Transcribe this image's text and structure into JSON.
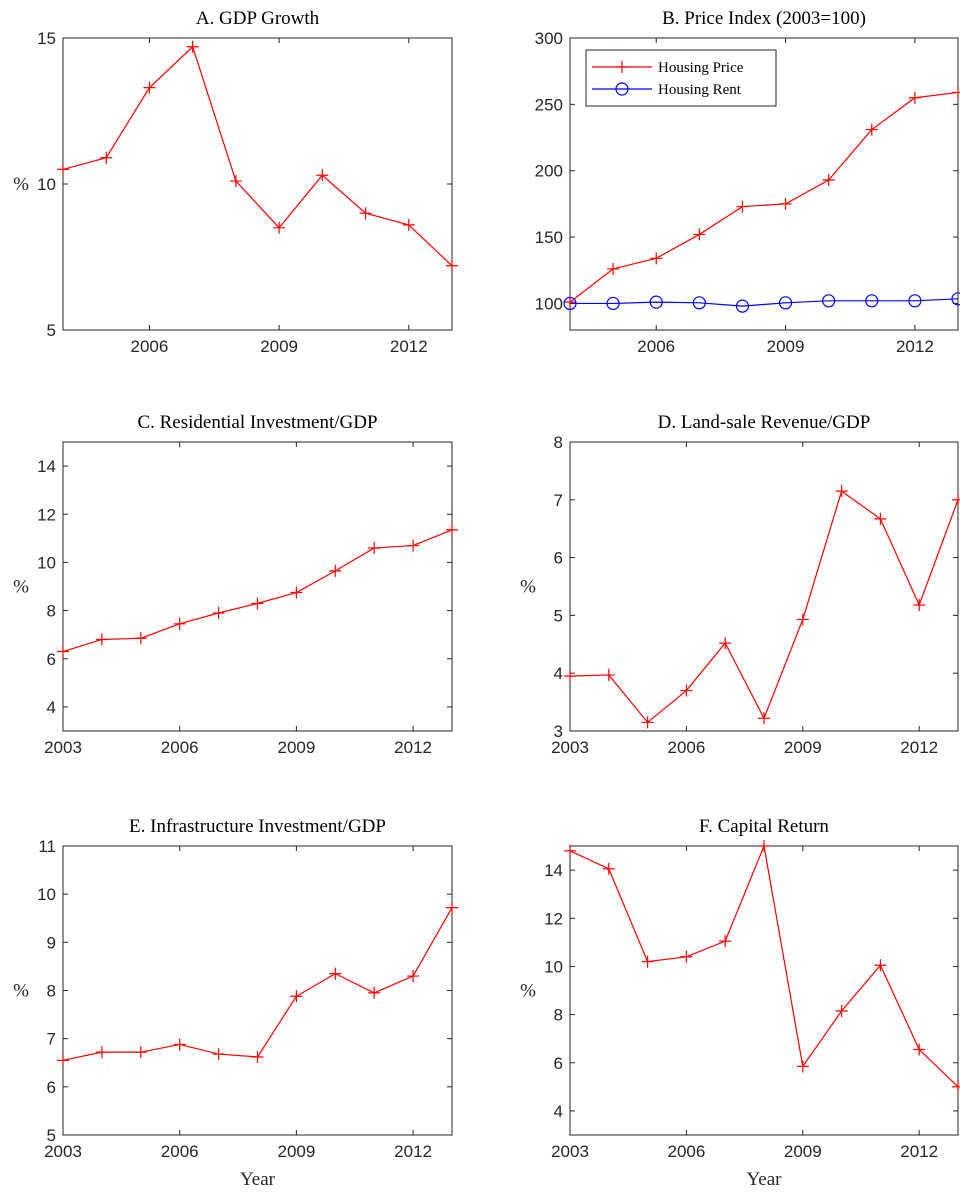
{
  "chart_data": [
    {
      "type": "line",
      "title": "A. GDP Growth",
      "ylabel": "%",
      "x": [
        2004,
        2005,
        2006,
        2007,
        2008,
        2009,
        2010,
        2011,
        2012,
        2013
      ],
      "series": [
        {
          "color": "#ff0000",
          "marker": "plus",
          "values": [
            10.5,
            10.9,
            13.3,
            14.7,
            10.1,
            8.5,
            10.3,
            9.0,
            8.6,
            7.2
          ]
        }
      ],
      "xlim": [
        2004,
        2013
      ],
      "xticks": [
        2006,
        2009,
        2012
      ],
      "ylim": [
        5,
        15
      ],
      "yticks": [
        5,
        10,
        15
      ]
    },
    {
      "type": "line",
      "title": "B. Price Index (2003=100)",
      "x": [
        2004,
        2005,
        2006,
        2007,
        2008,
        2009,
        2010,
        2011,
        2012,
        2013
      ],
      "series": [
        {
          "name": "Housing Price",
          "color": "#ff0000",
          "marker": "plus",
          "values": [
            101,
            126,
            134,
            152,
            173,
            175,
            193,
            231,
            255,
            259
          ]
        },
        {
          "name": "Housing Rent",
          "color": "#0000ff",
          "marker": "circle",
          "values": [
            100,
            100,
            101,
            100.5,
            98,
            100.5,
            102,
            102,
            102,
            103.5
          ]
        }
      ],
      "legend": "upper left",
      "xlim": [
        2004,
        2013
      ],
      "xticks": [
        2006,
        2009,
        2012
      ],
      "ylim": [
        80,
        300
      ],
      "yticks": [
        100,
        150,
        200,
        250,
        300
      ]
    },
    {
      "type": "line",
      "title": "C. Residential Investment/GDP",
      "ylabel": "%",
      "x": [
        2003,
        2004,
        2005,
        2006,
        2007,
        2008,
        2009,
        2010,
        2011,
        2012,
        2013
      ],
      "series": [
        {
          "color": "#ff0000",
          "marker": "plus",
          "values": [
            6.3,
            6.8,
            6.85,
            7.45,
            7.9,
            8.3,
            8.75,
            9.65,
            10.6,
            10.7,
            11.35
          ]
        }
      ],
      "xlim": [
        2003,
        2013
      ],
      "xticks": [
        2003,
        2006,
        2009,
        2012
      ],
      "ylim": [
        3,
        15
      ],
      "yticks": [
        4,
        6,
        8,
        10,
        12,
        14
      ]
    },
    {
      "type": "line",
      "title": "D. Land-sale Revenue/GDP",
      "ylabel": "%",
      "x": [
        2003,
        2004,
        2005,
        2006,
        2007,
        2008,
        2009,
        2010,
        2011,
        2012,
        2013
      ],
      "series": [
        {
          "color": "#ff0000",
          "marker": "plus",
          "values": [
            3.95,
            3.97,
            3.15,
            3.7,
            4.52,
            3.22,
            4.93,
            7.15,
            6.67,
            5.18,
            7.0
          ]
        }
      ],
      "xlim": [
        2003,
        2013
      ],
      "xticks": [
        2003,
        2006,
        2009,
        2012
      ],
      "ylim": [
        3,
        8
      ],
      "yticks": [
        3,
        4,
        5,
        6,
        7,
        8
      ]
    },
    {
      "type": "line",
      "title": "E. Infrastructure Investment/GDP",
      "ylabel": "%",
      "xlabel": "Year",
      "x": [
        2003,
        2004,
        2005,
        2006,
        2007,
        2008,
        2009,
        2010,
        2011,
        2012,
        2013
      ],
      "series": [
        {
          "color": "#ff0000",
          "marker": "plus",
          "values": [
            6.55,
            6.72,
            6.72,
            6.88,
            6.68,
            6.62,
            7.88,
            8.35,
            7.95,
            8.3,
            9.72
          ]
        }
      ],
      "xlim": [
        2003,
        2013
      ],
      "xticks": [
        2003,
        2006,
        2009,
        2012
      ],
      "ylim": [
        5,
        11
      ],
      "yticks": [
        5,
        6,
        7,
        8,
        9,
        10,
        11
      ]
    },
    {
      "type": "line",
      "title": "F. Capital Return",
      "ylabel": "%",
      "xlabel": "Year",
      "x": [
        2003,
        2004,
        2005,
        2006,
        2007,
        2008,
        2009,
        2010,
        2011,
        2012,
        2013
      ],
      "series": [
        {
          "color": "#ff0000",
          "marker": "plus",
          "values": [
            14.8,
            14.05,
            10.2,
            10.4,
            11.05,
            15.0,
            5.85,
            8.15,
            10.05,
            6.55,
            5.0
          ]
        }
      ],
      "xlim": [
        2003,
        2013
      ],
      "xticks": [
        2003,
        2006,
        2009,
        2012
      ],
      "ylim": [
        3,
        15
      ],
      "yticks": [
        4,
        6,
        8,
        10,
        12,
        14
      ]
    }
  ]
}
